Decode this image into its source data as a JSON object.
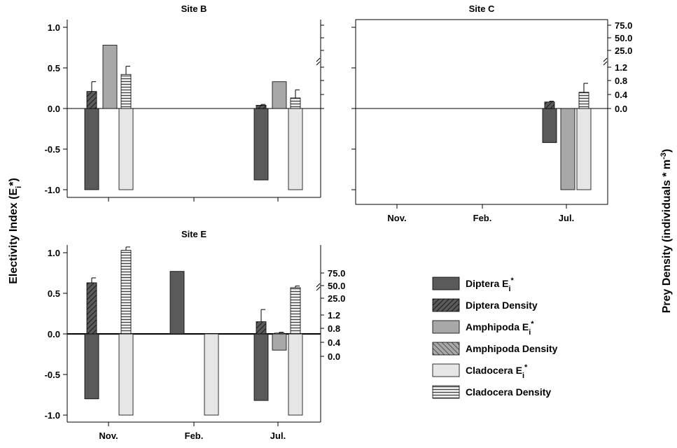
{
  "figure": {
    "left_axis_label": "Electivity Index (E",
    "left_axis_sub": "i",
    "left_axis_tail": "*)",
    "right_axis_label_main": "Prey Density (individuals * m",
    "right_axis_sup": "-3",
    "right_axis_tail": ")"
  },
  "legend": [
    {
      "name": "Diptera E",
      "sub": "i",
      "sup": "*",
      "fill": "#5a5a5a",
      "pattern": "none"
    },
    {
      "name": "Diptera Density",
      "sub": "",
      "sup": "",
      "fill": "#5a5a5a",
      "pattern": "hatch-right"
    },
    {
      "name": "Amphipoda E",
      "sub": "i",
      "sup": "*",
      "fill": "#a8a8a8",
      "pattern": "none"
    },
    {
      "name": "Amphipoda Density",
      "sub": "",
      "sup": "",
      "fill": "#a8a8a8",
      "pattern": "hatch-left"
    },
    {
      "name": "Cladocera E",
      "sub": "i",
      "sup": "*",
      "fill": "#e6e6e6",
      "pattern": "none"
    },
    {
      "name": "Cladocera Density",
      "sub": "",
      "sup": "",
      "fill": "#e6e6e6",
      "pattern": "horizontal"
    }
  ],
  "chart_data": [
    {
      "type": "bar",
      "title": "Site B",
      "categories": [
        "Nov.",
        "Feb.",
        "Jul."
      ],
      "show_x_ticklabels": false,
      "ylim": [
        -1.1,
        1.1
      ],
      "left_ticks": [
        "1.0",
        "0.5",
        "0.0",
        "-0.5",
        "-1.0"
      ],
      "right_ticks": [],
      "electivity": [
        {
          "name": "Diptera Ei*",
          "values": [
            -1.0,
            null,
            -0.88
          ]
        },
        {
          "name": "Amphipoda Ei*",
          "values": [
            0.78,
            null,
            0.33
          ]
        },
        {
          "name": "Cladocera Ei*",
          "values": [
            -1.0,
            null,
            -1.0
          ]
        }
      ],
      "density": [
        {
          "name": "Diptera Density",
          "values": [
            0.21,
            null,
            0.04
          ],
          "errors": [
            0.12,
            null,
            0.01
          ]
        },
        {
          "name": "Amphipoda Density",
          "values": [
            null,
            null,
            null
          ],
          "errors": [
            null,
            null,
            null
          ]
        },
        {
          "name": "Cladocera Density",
          "values": [
            0.42,
            null,
            0.13
          ],
          "errors": [
            0.1,
            null,
            0.1
          ]
        }
      ]
    },
    {
      "type": "bar",
      "title": "Site C",
      "categories": [
        "Nov.",
        "Feb.",
        "Jul."
      ],
      "show_x_ticklabels": true,
      "ylim": [
        -1.1,
        1.1
      ],
      "left_ticks": [],
      "right_ticks": [
        "75.0",
        "50.0",
        "25.0",
        "1.2",
        "0.8",
        "0.4",
        "0.0"
      ],
      "electivity": [
        {
          "name": "Diptera Ei*",
          "values": [
            null,
            null,
            -0.42
          ]
        },
        {
          "name": "Amphipoda Ei*",
          "values": [
            null,
            null,
            -1.0
          ]
        },
        {
          "name": "Cladocera Ei*",
          "values": [
            null,
            null,
            -1.0
          ]
        }
      ],
      "density": [
        {
          "name": "Diptera Density",
          "values": [
            null,
            null,
            0.08
          ],
          "errors": [
            null,
            null,
            0.01
          ]
        },
        {
          "name": "Amphipoda Density",
          "values": [
            null,
            null,
            null
          ],
          "errors": [
            null,
            null,
            null
          ]
        },
        {
          "name": "Cladocera Density",
          "values": [
            null,
            null,
            0.2
          ],
          "errors": [
            null,
            null,
            0.11
          ]
        }
      ]
    },
    {
      "type": "bar",
      "title": "Site E",
      "categories": [
        "Nov.",
        "Feb.",
        "Jul."
      ],
      "show_x_ticklabels": true,
      "ylim": [
        -1.1,
        1.1
      ],
      "left_ticks": [
        "1.0",
        "0.5",
        "0.0",
        "-0.5",
        "-1.0"
      ],
      "right_ticks": [
        "75.0",
        "50.0",
        "25.0",
        "1.2",
        "0.8",
        "0.4",
        "0.0"
      ],
      "electivity": [
        {
          "name": "Diptera Ei*",
          "values": [
            -0.8,
            0.77,
            -0.82
          ]
        },
        {
          "name": "Amphipoda Ei*",
          "values": [
            null,
            null,
            -0.2
          ]
        },
        {
          "name": "Cladocera Ei*",
          "values": [
            -1.0,
            -1.0,
            -1.0
          ]
        }
      ],
      "density": [
        {
          "name": "Diptera Density",
          "values": [
            0.63,
            null,
            0.15
          ],
          "errors": [
            0.06,
            null,
            0.15
          ]
        },
        {
          "name": "Amphipoda Density",
          "values": [
            null,
            null,
            0.01
          ],
          "errors": [
            null,
            null,
            0.01
          ]
        },
        {
          "name": "Cladocera Density",
          "values": [
            1.03,
            null,
            0.57
          ],
          "errors": [
            0.04,
            null,
            0.02
          ]
        }
      ]
    }
  ]
}
